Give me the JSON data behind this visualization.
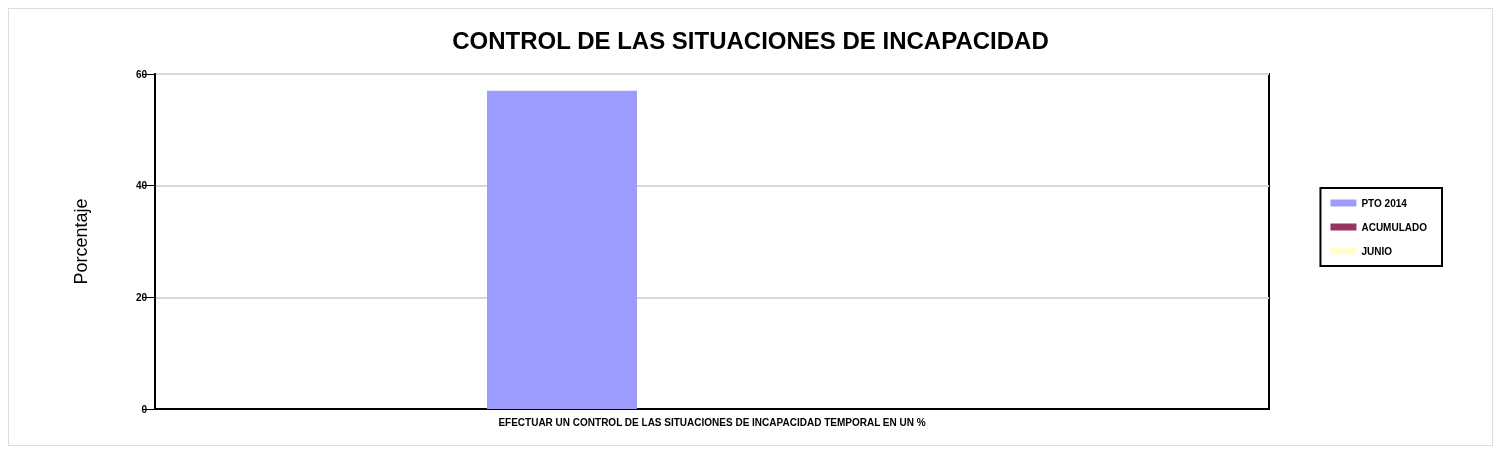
{
  "chart_data": {
    "type": "bar",
    "title": "CONTROL DE LAS SITUACIONES DE INCAPACIDAD",
    "ylabel": "Porcentaje",
    "categories": [
      "EFECTUAR UN CONTROL DE LAS SITUACIONES DE INCAPACIDAD TEMPORAL EN UN %"
    ],
    "series": [
      {
        "name": "PTO 2014",
        "color": "#9c9cff",
        "values": [
          57
        ]
      },
      {
        "name": "ACUMULADO",
        "color": "#993366",
        "values": [
          0
        ]
      },
      {
        "name": "JUNIO",
        "color": "#ffffcc",
        "values": [
          0
        ]
      }
    ],
    "ylim": [
      0,
      60
    ],
    "yticks": [
      0,
      20,
      40,
      60
    ],
    "grid": "y",
    "legend": "right"
  }
}
